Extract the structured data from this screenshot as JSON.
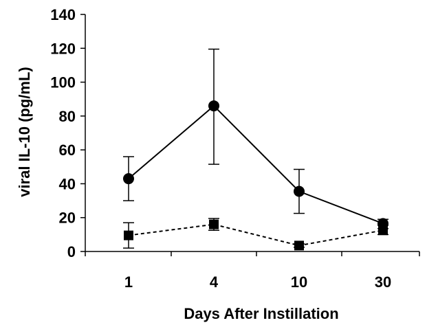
{
  "chart_data": {
    "type": "line",
    "categories": [
      "1",
      "4",
      "10",
      "30"
    ],
    "xlabel": "Days After Instillation",
    "ylabel": "viral IL-10 (pg/mL)",
    "ylim": [
      0,
      140
    ],
    "yticks": [
      0,
      20,
      40,
      60,
      80,
      100,
      120,
      140
    ],
    "grid": false,
    "legend": "none",
    "series": [
      {
        "marker": "circle",
        "line_style": "solid",
        "color": "#000000",
        "values": [
          43,
          86,
          35.5,
          16.5
        ],
        "error_low": [
          30,
          51.5,
          22.5,
          13.5
        ],
        "error_high": [
          56,
          119.5,
          48.5,
          19
        ]
      },
      {
        "marker": "square",
        "line_style": "dashed",
        "color": "#000000",
        "values": [
          9.5,
          16,
          3.5,
          12.5
        ],
        "error_low": [
          2,
          12.5,
          2.5,
          10
        ],
        "error_high": [
          17,
          19.5,
          4.5,
          15.5
        ]
      }
    ]
  }
}
